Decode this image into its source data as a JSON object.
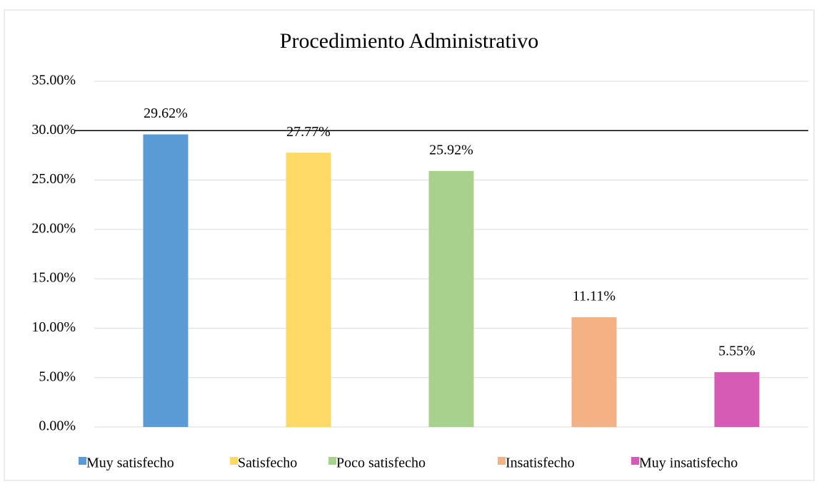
{
  "chart_data": {
    "type": "bar",
    "title": "Procedimiento Administrativo",
    "categories": [
      "Muy satisfecho",
      "Satisfecho",
      "Poco satisfecho",
      "Insatisfecho",
      "Muy insatisfecho"
    ],
    "values": [
      29.62,
      27.77,
      25.92,
      11.11,
      5.55
    ],
    "value_labels": [
      "29.62%",
      "27.77%",
      "25.92%",
      "11.11%",
      "5.55%"
    ],
    "colors": [
      "#5b9bd5",
      "#ffd966",
      "#a9d18e",
      "#f4b183",
      "#d55bb5"
    ],
    "ylim": [
      0,
      35
    ],
    "yticks": [
      {
        "value": 0,
        "label": "0.00%"
      },
      {
        "value": 5,
        "label": "5.00%"
      },
      {
        "value": 10,
        "label": "10.00%"
      },
      {
        "value": 15,
        "label": "15.00%"
      },
      {
        "value": 20,
        "label": "20.00%"
      },
      {
        "value": 25,
        "label": "25.00%"
      },
      {
        "value": 30,
        "label": "30.00%"
      },
      {
        "value": 35,
        "label": "35.00%"
      }
    ],
    "grid": true,
    "reference_line": {
      "value": 30,
      "color": "#000000"
    },
    "legend": "bottom"
  }
}
